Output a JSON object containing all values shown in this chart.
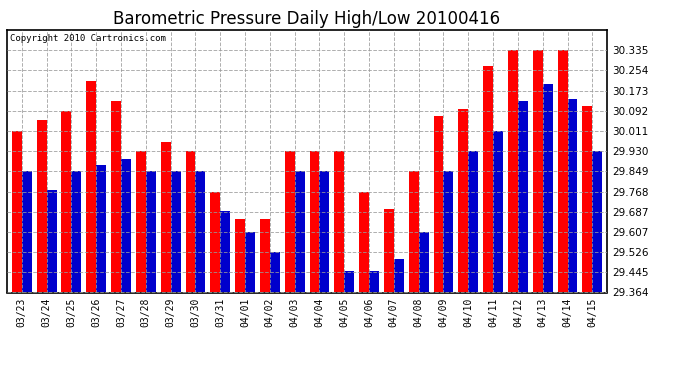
{
  "title": "Barometric Pressure Daily High/Low 20100416",
  "copyright": "Copyright 2010 Cartronics.com",
  "dates": [
    "03/23",
    "03/24",
    "03/25",
    "03/26",
    "03/27",
    "03/28",
    "03/29",
    "03/30",
    "03/31",
    "04/01",
    "04/02",
    "04/03",
    "04/04",
    "04/05",
    "04/06",
    "04/07",
    "04/08",
    "04/09",
    "04/10",
    "04/11",
    "04/12",
    "04/13",
    "04/14",
    "04/15"
  ],
  "highs": [
    30.011,
    30.054,
    30.092,
    30.213,
    30.133,
    29.93,
    29.968,
    29.93,
    29.768,
    29.66,
    29.66,
    29.93,
    29.93,
    29.93,
    29.768,
    29.7,
    29.849,
    30.073,
    30.1,
    30.27,
    30.335,
    30.335,
    30.335,
    30.11
  ],
  "lows": [
    29.849,
    29.775,
    29.849,
    29.875,
    29.9,
    29.849,
    29.849,
    29.849,
    29.69,
    29.607,
    29.526,
    29.849,
    29.849,
    29.45,
    29.45,
    29.5,
    29.607,
    29.849,
    29.93,
    30.011,
    30.133,
    30.2,
    30.14,
    29.93
  ],
  "ylim_min": 29.364,
  "ylim_max": 30.416,
  "yticks": [
    29.364,
    29.445,
    29.526,
    29.607,
    29.687,
    29.768,
    29.849,
    29.93,
    30.011,
    30.092,
    30.173,
    30.254,
    30.335
  ],
  "high_color": "#FF0000",
  "low_color": "#0000CC",
  "bg_color": "#FFFFFF",
  "plot_bg_color": "#FFFFFF",
  "grid_color": "#999999",
  "title_fontsize": 12,
  "bar_width": 0.4
}
